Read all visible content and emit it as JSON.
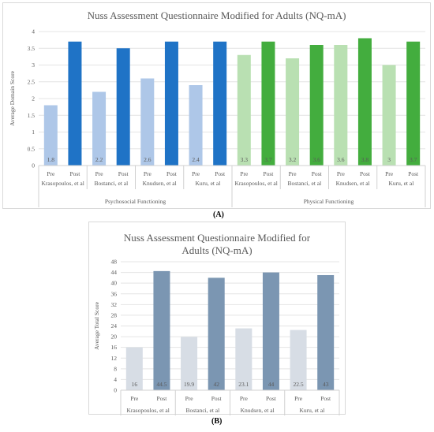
{
  "figure": {
    "label_a": "(A)",
    "label_b": "(B)"
  },
  "chart_data": [
    {
      "type": "bar",
      "title": "Nuss Assessment Questionnaire Modified for Adults (NQ-mA)",
      "ylabel": "Average Domain Score",
      "xlabel": "",
      "ylim": [
        0,
        4
      ],
      "yticks": [
        "0",
        "0.5",
        "1",
        "1.5",
        "2",
        "2.5",
        "3",
        "3.5",
        "4"
      ],
      "grid": true,
      "categories": [
        "Pre",
        "Post",
        "Pre",
        "Post",
        "Pre",
        "Post",
        "Pre",
        "Post",
        "Pre",
        "Post",
        "Pre",
        "Post",
        "Pre",
        "Post",
        "Pre",
        "Post"
      ],
      "studies": [
        "Krasopoulos, et al",
        "Bostanci, et al",
        "Knudsen, et al",
        "Kuru, et al",
        "Krasopoulos, et al",
        "Bostanci, et al",
        "Knudsen, et al",
        "Kuru, et al"
      ],
      "groups": [
        "Psychosocial Functioning",
        "Physical Functioning"
      ],
      "values": [
        1.8,
        3.7,
        2.2,
        3.5,
        2.6,
        3.7,
        2.4,
        3.7,
        3.3,
        3.7,
        3.2,
        3.6,
        3.6,
        3.8,
        3.0,
        3.7
      ],
      "data_labels": [
        "1.8",
        "",
        "2.2",
        "",
        "2.6",
        "",
        "2.4",
        "",
        "3.3",
        "3.7",
        "3.2",
        "3.6",
        "3.6",
        "3.8",
        "3",
        "3.7"
      ],
      "colors": [
        "#aec7e8",
        "#1f73c6",
        "#aec7e8",
        "#1f73c6",
        "#aec7e8",
        "#1f73c6",
        "#aec7e8",
        "#1f73c6",
        "#b9e0b2",
        "#43ad3e",
        "#b9e0b2",
        "#43ad3e",
        "#b9e0b2",
        "#43ad3e",
        "#b9e0b2",
        "#43ad3e"
      ]
    },
    {
      "type": "bar",
      "title": "Nuss Assessment Questionnaire Modified for Adults (NQ-mA)",
      "ylabel": "Average Total Score",
      "xlabel": "",
      "ylim": [
        0,
        48
      ],
      "yticks": [
        "0",
        "4",
        "8",
        "12",
        "16",
        "20",
        "24",
        "28",
        "32",
        "36",
        "40",
        "44",
        "48"
      ],
      "grid": true,
      "categories": [
        "Pre",
        "Post",
        "Pre",
        "Post",
        "Pre",
        "Post",
        "Pre",
        "Post"
      ],
      "studies": [
        "Krasopoulos, et al",
        "Bostanci, et al",
        "Knudsen, et al",
        "Kuru, et al"
      ],
      "values": [
        16,
        44.5,
        19.9,
        42,
        23.1,
        44,
        22.5,
        43
      ],
      "data_labels": [
        "16",
        "44.5",
        "19.9",
        "42",
        "23.1",
        "44",
        "22.5",
        "43"
      ],
      "colors": [
        "#d7dde5",
        "#7b96b2",
        "#d7dde5",
        "#7b96b2",
        "#d7dde5",
        "#7b96b2",
        "#d7dde5",
        "#7b96b2"
      ]
    }
  ]
}
